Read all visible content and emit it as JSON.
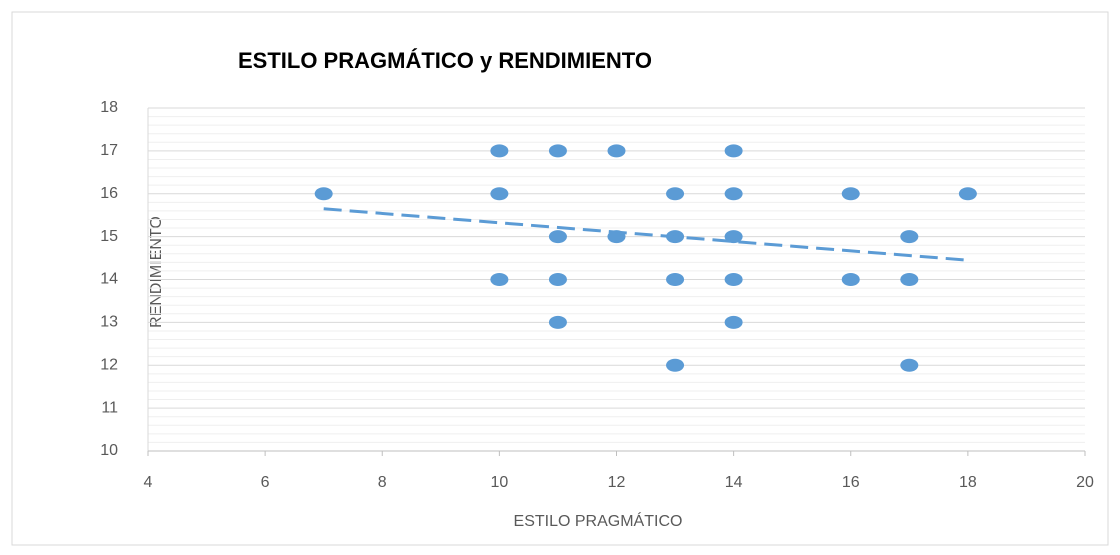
{
  "chart_data": {
    "type": "scatter",
    "title": "ESTILO PRAGMÁTICO y RENDIMIENTO",
    "x_label": "ESTILO PRAGMÁTICO",
    "y_label": "RENDIMIENTO",
    "x": [
      7,
      10,
      11,
      12,
      14,
      10,
      13,
      14,
      16,
      18,
      11,
      12,
      13,
      14,
      17,
      10,
      11,
      13,
      14,
      16,
      17,
      11,
      14,
      13,
      17
    ],
    "values": [
      16,
      17,
      17,
      17,
      17,
      16,
      16,
      16,
      16,
      16,
      15,
      15,
      15,
      15,
      15,
      14,
      14,
      14,
      14,
      14,
      14,
      13,
      13,
      12,
      12
    ],
    "color": "#5b9bd5",
    "trendline": {
      "x": [
        7,
        18
      ],
      "values": [
        15.65,
        14.45
      ]
    },
    "xlim": [
      4,
      20
    ],
    "xticks": [
      4,
      6,
      8,
      10,
      12,
      14,
      16,
      18,
      20
    ],
    "ylim": [
      10,
      18
    ],
    "yticks": [
      10,
      11,
      12,
      13,
      14,
      15,
      16,
      17,
      18
    ],
    "grid": true
  }
}
